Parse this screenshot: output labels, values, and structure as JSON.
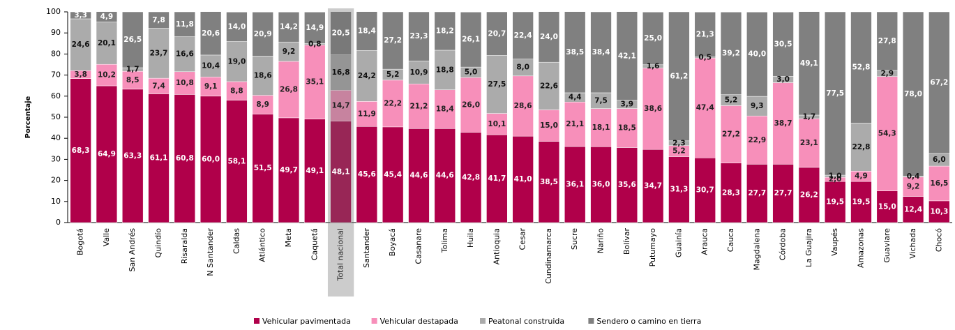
{
  "chart_data": {
    "type": "stacked_bar",
    "y_label": "Porcentaje",
    "categories": [
      "Bogotá",
      "Valle",
      "San Andrés",
      "Quindío",
      "Risaralda",
      "N Santander",
      "Caldas",
      "Atlántico",
      "Meta",
      "Caquetá",
      "Total nacional",
      "Santander",
      "Boyacá",
      "Casanare",
      "Tolima",
      "Huila",
      "Antioquia",
      "Cesar",
      "Cundinamarca",
      "Sucre",
      "Nariño",
      "Bolívar",
      "Putumayo",
      "Guainía",
      "Arauca",
      "Cauca",
      "Magdalena",
      "Córdoba",
      "La Guajira",
      "Vaupés",
      "Amazonas",
      "Guaviare",
      "Vichada",
      "Chocó"
    ],
    "highlight": "Total nacional",
    "ylim": [
      0,
      100
    ],
    "yticks": [
      0,
      10,
      20,
      30,
      40,
      50,
      60,
      70,
      80,
      90,
      100
    ],
    "legend": "bottom",
    "series": [
      {
        "name": "Vehicular pavimentada",
        "color": "#b0004a",
        "label_color": "#ffffff",
        "values": [
          68.3,
          64.9,
          63.3,
          61.1,
          60.8,
          60.0,
          58.1,
          51.5,
          49.7,
          49.1,
          48.1,
          45.6,
          45.4,
          44.6,
          44.6,
          42.8,
          41.7,
          41.0,
          38.5,
          36.1,
          36.0,
          35.6,
          34.7,
          31.3,
          30.7,
          28.3,
          27.7,
          27.7,
          26.2,
          19.5,
          19.5,
          15.0,
          12.4,
          10.3
        ],
        "value_labels": [
          "68,3",
          "64,9",
          "63,3",
          "61,1",
          "60,8",
          "60,0",
          "58,1",
          "51,5",
          "49,7",
          "49,1",
          "48,1",
          "45,6",
          "45,4",
          "44,6",
          "44,6",
          "42,8",
          "41,7",
          "41,0",
          "38,5",
          "36,1",
          "36,0",
          "35,6",
          "34,7",
          "31,3",
          "30,7",
          "28,3",
          "27,7",
          "27,7",
          "26,2",
          "19,5",
          "19,5",
          "15,0",
          "12,4",
          "10,3"
        ]
      },
      {
        "name": "Vehicular destapada",
        "color": "#f78fba",
        "label_color": "#222222",
        "values": [
          3.8,
          10.2,
          8.5,
          7.4,
          10.8,
          9.1,
          8.8,
          8.9,
          26.8,
          35.1,
          14.7,
          11.9,
          22.2,
          21.2,
          18.4,
          26.0,
          10.1,
          28.6,
          15.0,
          21.1,
          18.1,
          18.5,
          38.6,
          5.2,
          47.4,
          27.2,
          22.9,
          38.7,
          23.1,
          2.0,
          4.9,
          54.3,
          9.2,
          16.5
        ],
        "value_labels": [
          "3,8",
          "10,2",
          "8,5",
          "7,4",
          "10,8",
          "9,1",
          "8,8",
          "8,9",
          "26,8",
          "35,1",
          "14,7",
          "11,9",
          "22,2",
          "21,2",
          "18,4",
          "26,0",
          "10,1",
          "28,6",
          "15,0",
          "21,1",
          "18,1",
          "18,5",
          "38,6",
          "5,2",
          "47,4",
          "27,2",
          "22,9",
          "38,7",
          "23,1",
          "2,0",
          "4,9",
          "54,3",
          "9,2",
          "16,5"
        ]
      },
      {
        "name": "Peatonal construida",
        "color": "#ababab",
        "label_color": "#111111",
        "values": [
          24.6,
          20.1,
          1.7,
          23.7,
          16.6,
          10.4,
          19.0,
          18.6,
          9.2,
          0.8,
          16.8,
          24.2,
          5.2,
          10.9,
          18.8,
          5.0,
          27.5,
          8.0,
          22.6,
          4.4,
          7.5,
          3.9,
          1.6,
          2.3,
          0.5,
          5.2,
          9.3,
          3.0,
          1.7,
          1.0,
          22.8,
          2.9,
          0.4,
          6.0
        ],
        "value_labels": [
          "24,6",
          "20,1",
          "1,7",
          "23,7",
          "16,6",
          "10,4",
          "19,0",
          "18,6",
          "9,2",
          "0,8",
          "16,8",
          "24,2",
          "5,2",
          "10,9",
          "18,8",
          "5,0",
          "27,5",
          "8,0",
          "22,6",
          "4,4",
          "7,5",
          "3,9",
          "1,6",
          "2,3",
          "0,5",
          "5,2",
          "9,3",
          "3,0",
          "1,7",
          "1,0",
          "22,8",
          "2,9",
          "0,4",
          "6,0"
        ]
      },
      {
        "name": "Sendero o camino en tierra",
        "color": "#808080",
        "label_color": "#ffffff",
        "values": [
          3.3,
          4.9,
          26.5,
          7.8,
          11.8,
          20.6,
          14.0,
          20.9,
          14.2,
          14.9,
          20.5,
          18.4,
          27.2,
          23.3,
          18.2,
          26.1,
          20.7,
          22.4,
          24.0,
          38.5,
          38.4,
          42.1,
          25.0,
          61.2,
          21.3,
          39.2,
          40.0,
          30.5,
          49.1,
          77.5,
          52.8,
          27.8,
          78.0,
          67.2
        ],
        "value_labels": [
          "3,3",
          "4,9",
          "26,5",
          "7,8",
          "11,8",
          "20,6",
          "14,0",
          "20,9",
          "14,2",
          "14,9",
          "20,5",
          "18,4",
          "27,2",
          "23,3",
          "18,2",
          "26,1",
          "20,7",
          "22,4",
          "24,0",
          "38,5",
          "38,4",
          "42,1",
          "25,0",
          "61,2",
          "21,3",
          "39,2",
          "40,0",
          "30,5",
          "49,1",
          "77,5",
          "52,8",
          "27,8",
          "78,0",
          "67,2"
        ]
      }
    ]
  }
}
